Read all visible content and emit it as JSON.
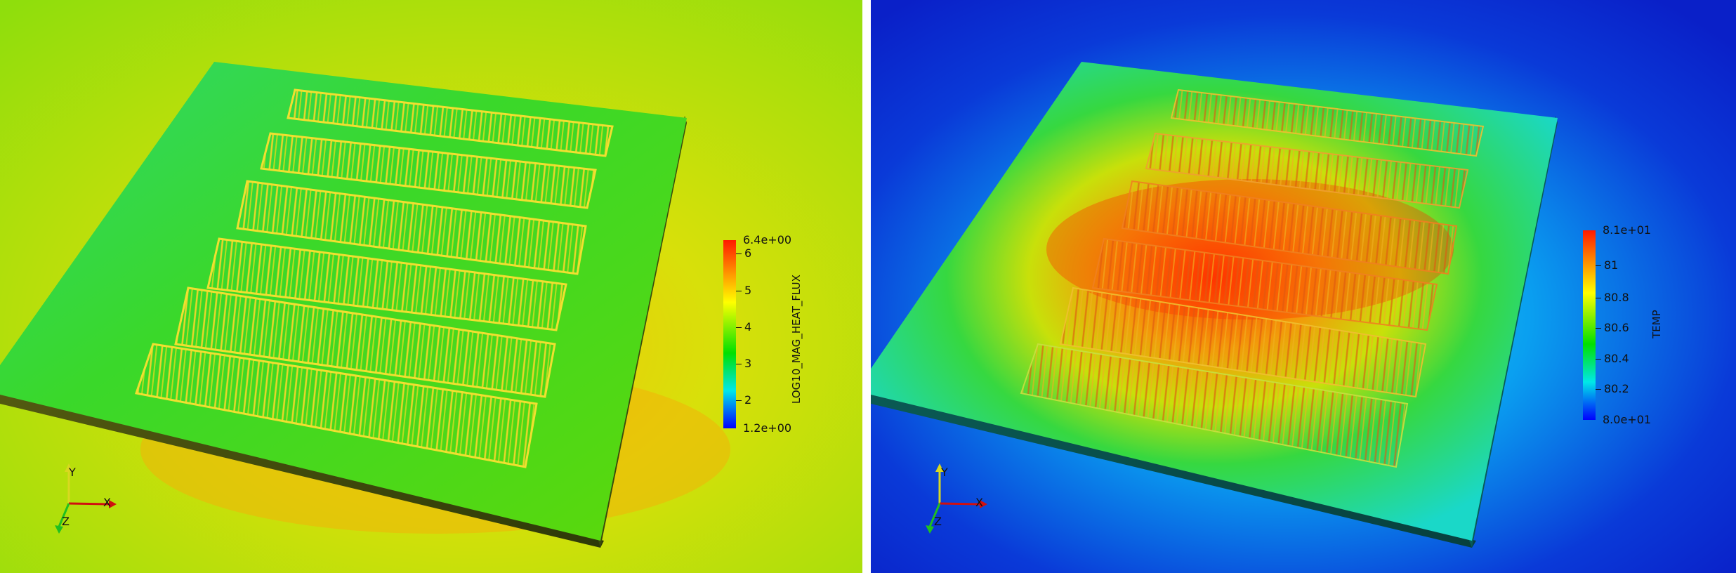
{
  "left_view": {
    "colorbar": {
      "title": "LOG10_MAG_HEAT_FLUX",
      "max_label": "6.4e+00",
      "min_label": "1.2e+00",
      "ticks": [
        "6",
        "5",
        "4",
        "3",
        "2"
      ],
      "tick_values": [
        6,
        5,
        4,
        3,
        2
      ],
      "range": [
        1.2,
        6.4
      ],
      "gradient": [
        "#ff0000",
        "#ffff00",
        "#00ff00",
        "#00ffff",
        "#0000ff"
      ]
    },
    "axes": {
      "y": "Y",
      "x": "X",
      "z": "Z"
    }
  },
  "right_view": {
    "colorbar": {
      "title": "TEMP",
      "max_label": "8.1e+01",
      "min_label": "8.0e+01",
      "ticks": [
        "81",
        "80.8",
        "80.6",
        "80.4",
        "80.2"
      ],
      "tick_values": [
        81,
        80.8,
        80.6,
        80.4,
        80.2
      ],
      "range": [
        80.0,
        81.05
      ],
      "gradient": [
        "#ff0000",
        "#ffff00",
        "#00ff00",
        "#00ffff",
        "#0000ff"
      ]
    },
    "axes": {
      "y": "Y",
      "x": "X",
      "z": "Z"
    }
  }
}
